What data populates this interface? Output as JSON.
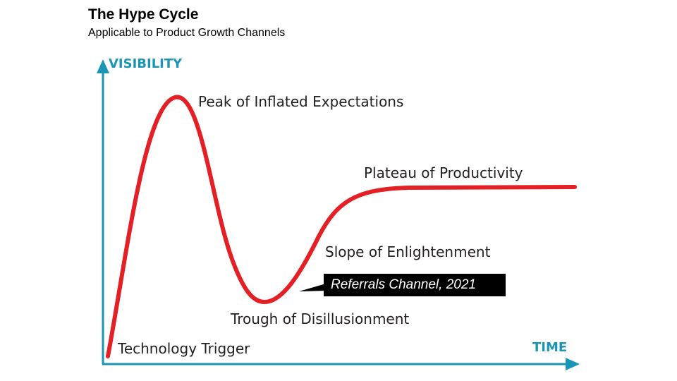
{
  "header": {
    "title": "The Hype Cycle",
    "subtitle": "Applicable to Product Growth Channels"
  },
  "axes": {
    "y_label": "VISIBILITY",
    "x_label": "TIME",
    "color": "#1b95b5"
  },
  "curve": {
    "color": "#e32025"
  },
  "phases": {
    "trigger": "Technology Trigger",
    "peak": "Peak of Inflated Expectations",
    "trough": "Trough of Disillusionment",
    "slope": "Slope of Enlightenment",
    "plateau": "Plateau of Productivity"
  },
  "callout": {
    "text": "Referrals Channel, 2021"
  }
}
